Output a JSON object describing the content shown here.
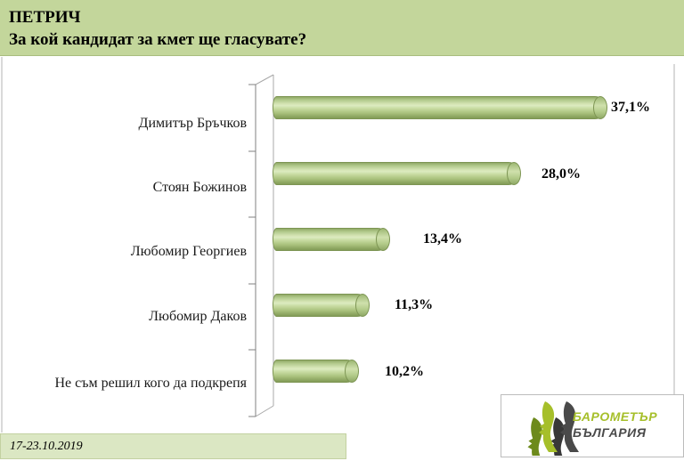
{
  "header": {
    "city": "ПЕТРИЧ",
    "question": "За кой кандидат за кмет ще гласувате?"
  },
  "chart_data": {
    "type": "bar",
    "orientation": "horizontal",
    "style": "3d-cylinder",
    "title": "За кой кандидат за кмет ще гласувате?",
    "categories": [
      "Димитър Бръчков",
      "Стоян Божинов",
      "Любомир Георгиев",
      "Любомир Даков",
      "Не съм решил кого да подкрепя"
    ],
    "values": [
      37.1,
      28.0,
      13.4,
      11.3,
      10.2
    ],
    "value_labels": [
      "37,1%",
      "28,0%",
      "13,4%",
      "11,3%",
      "10,2%"
    ],
    "unit": "%",
    "xlim": [
      0,
      40
    ],
    "grid": false,
    "legend": false
  },
  "footer": {
    "survey_period": "17-23.10.2019"
  },
  "logo": {
    "line1": "БАРОМЕТЪР",
    "line2": "БЪЛГАРИЯ"
  },
  "colors": {
    "header-bg": "#c3d69b",
    "date-bg": "#dbe7c3",
    "bar-border": "#7d9553",
    "axis": "#808080",
    "wall": "#a8a8a8",
    "page-line": "#b3b3b3",
    "logo-green": "#a6bf2a",
    "logo-gray": "#4a4a4a",
    "text": "#000000"
  }
}
